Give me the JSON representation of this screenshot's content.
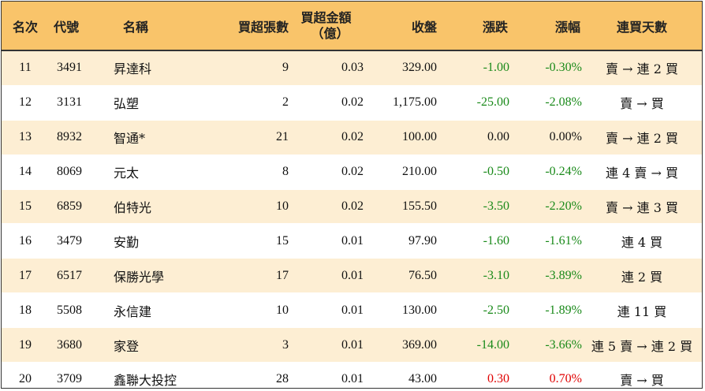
{
  "header": {
    "rank": "名次",
    "code": "代號",
    "name": "名稱",
    "buy_sheets": "買超張數",
    "buy_amount_line1": "買超金額",
    "buy_amount_line2": "（億）",
    "close": "收盤",
    "change": "漲跌",
    "change_pct": "漲幅",
    "consecutive_days": "連買天數"
  },
  "colors": {
    "header_bg": "#f9c46a",
    "stripe_bg": "#fdeed3",
    "up": "#e00000",
    "down": "#1a8a1a"
  },
  "rows": [
    {
      "rank": "11",
      "code": "3491",
      "name": "昇達科",
      "sheets": "9",
      "amount": "0.03",
      "close": "329.00",
      "change": "-1.00",
      "pct": "-0.30%",
      "days": "賣 → 連 2 買",
      "dir": "down"
    },
    {
      "rank": "12",
      "code": "3131",
      "name": "弘塑",
      "sheets": "2",
      "amount": "0.02",
      "close": "1,175.00",
      "change": "-25.00",
      "pct": "-2.08%",
      "days": "賣 → 買",
      "dir": "down"
    },
    {
      "rank": "13",
      "code": "8932",
      "name": "智通*",
      "sheets": "21",
      "amount": "0.02",
      "close": "100.00",
      "change": "0.00",
      "pct": "0.00%",
      "days": "賣 → 連 2 買",
      "dir": "zero"
    },
    {
      "rank": "14",
      "code": "8069",
      "name": "元太",
      "sheets": "8",
      "amount": "0.02",
      "close": "210.00",
      "change": "-0.50",
      "pct": "-0.24%",
      "days": "連 4 賣 → 買",
      "dir": "down"
    },
    {
      "rank": "15",
      "code": "6859",
      "name": "伯特光",
      "sheets": "10",
      "amount": "0.02",
      "close": "155.50",
      "change": "-3.50",
      "pct": "-2.20%",
      "days": "賣 → 連 3 買",
      "dir": "down"
    },
    {
      "rank": "16",
      "code": "3479",
      "name": "安勤",
      "sheets": "15",
      "amount": "0.01",
      "close": "97.90",
      "change": "-1.60",
      "pct": "-1.61%",
      "days": "連 4 買",
      "dir": "down"
    },
    {
      "rank": "17",
      "code": "6517",
      "name": "保勝光學",
      "sheets": "17",
      "amount": "0.01",
      "close": "76.50",
      "change": "-3.10",
      "pct": "-3.89%",
      "days": "連 2 買",
      "dir": "down"
    },
    {
      "rank": "18",
      "code": "5508",
      "name": "永信建",
      "sheets": "10",
      "amount": "0.01",
      "close": "130.00",
      "change": "-2.50",
      "pct": "-1.89%",
      "days": "連 11 買",
      "dir": "down"
    },
    {
      "rank": "19",
      "code": "3680",
      "name": "家登",
      "sheets": "3",
      "amount": "0.01",
      "close": "369.00",
      "change": "-14.00",
      "pct": "-3.66%",
      "days": "連 5 賣 → 連 2 買",
      "dir": "down"
    },
    {
      "rank": "20",
      "code": "3709",
      "name": "鑫聯大投控",
      "sheets": "28",
      "amount": "0.01",
      "close": "43.00",
      "change": "0.30",
      "pct": "0.70%",
      "days": "賣 → 買",
      "dir": "up"
    }
  ]
}
